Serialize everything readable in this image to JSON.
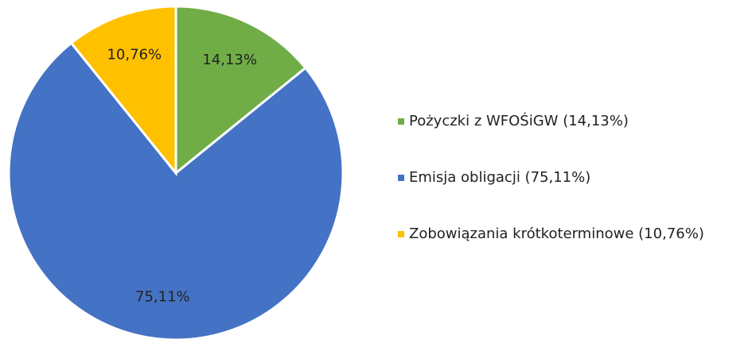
{
  "chart_data": {
    "type": "pie",
    "categories": [
      "Pożyczki z WFOŚiGW (14,13%)",
      "Emisja obligacji (75,11%)",
      "Zobowiązania krótkoterminowe (10,76%)"
    ],
    "values": [
      14.13,
      75.11,
      10.76
    ],
    "value_labels": [
      "14,13%",
      "75,11%",
      "10,76%"
    ],
    "colors": [
      "#70ad47",
      "#4472c4",
      "#ffc000"
    ],
    "legend": "right"
  }
}
